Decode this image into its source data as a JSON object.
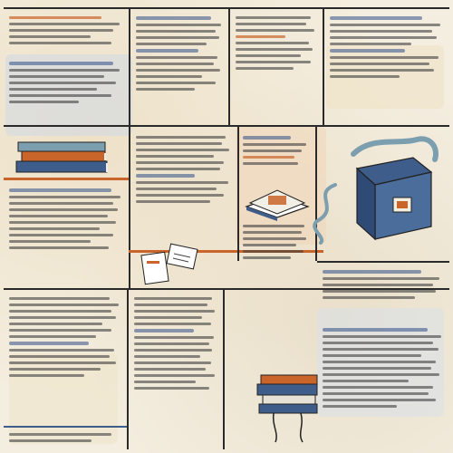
{
  "palette": {
    "paper": "#f4eee0",
    "ink": "#2a2a2a",
    "accent_orange": "#c9642a",
    "accent_blue": "#3f5d8a",
    "accent_teal": "#7c9fb0"
  },
  "illustrations": [
    {
      "name": "book-stack-left",
      "icon": "books-icon"
    },
    {
      "name": "open-book-center",
      "icon": "open-book-icon"
    },
    {
      "name": "filing-box-right",
      "icon": "file-box-icon"
    },
    {
      "name": "papers-center",
      "icon": "documents-icon"
    },
    {
      "name": "book-stack-bottom",
      "icon": "books-icon"
    }
  ]
}
